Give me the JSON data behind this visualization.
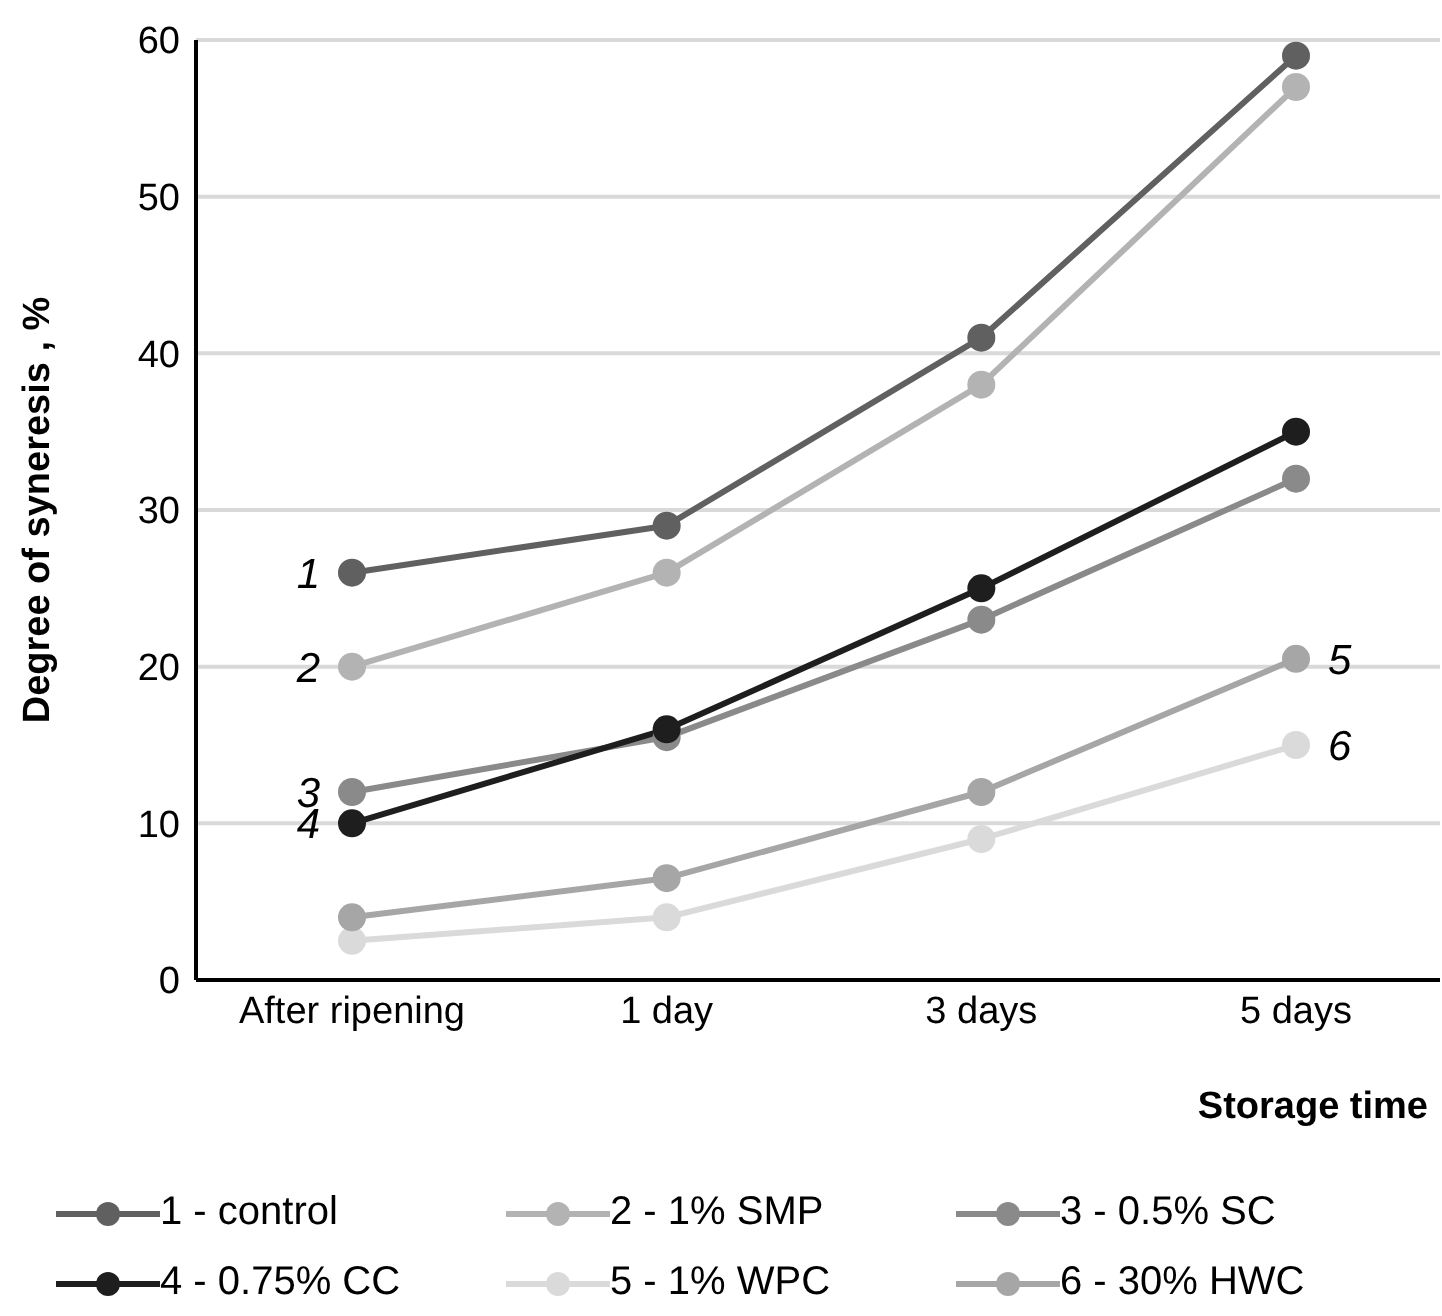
{
  "chart_data": {
    "type": "line",
    "ylabel": "Degree of syneresis , %",
    "xlabel": "Storage time",
    "categories": [
      "After ripening",
      "1  day",
      "3 days",
      "5 days"
    ],
    "series": [
      {
        "name": "1 - control",
        "color": "#606060",
        "values": [
          26,
          29,
          41,
          59
        ]
      },
      {
        "name": "2 - 1% SMP",
        "color": "#b3b3b3",
        "values": [
          20,
          26,
          38,
          57
        ]
      },
      {
        "name": "3 - 0.5% SC",
        "color": "#8a8a8a",
        "values": [
          12,
          15.5,
          23,
          32
        ]
      },
      {
        "name": "4 - 0.75% CC",
        "color": "#1e1e1e",
        "values": [
          10,
          16,
          25,
          35
        ]
      },
      {
        "name": "5 - 1% WPC",
        "color": "#dadada",
        "values": [
          2.5,
          4,
          9,
          15
        ]
      },
      {
        "name": "6 - 30% HWC",
        "color": "#a6a6a6",
        "values": [
          4,
          6.5,
          12,
          20.5
        ]
      }
    ],
    "ylim": [
      0,
      60
    ],
    "yticks": [
      0,
      10,
      20,
      30,
      40,
      50,
      60
    ],
    "grid": "y",
    "legend": "bottom",
    "marker": "circle",
    "line_style": "solid",
    "annotations": [
      {
        "text": "1",
        "x": "After ripening",
        "y": 26
      },
      {
        "text": "2",
        "x": "After ripening",
        "y": 20
      },
      {
        "text": "3",
        "x": "After ripening",
        "y": 12
      },
      {
        "text": "4",
        "x": "After ripening",
        "y": 10
      },
      {
        "text": "5",
        "x": "5 days",
        "y": 20.5
      },
      {
        "text": "6",
        "x": "5 days",
        "y": 15
      }
    ]
  }
}
